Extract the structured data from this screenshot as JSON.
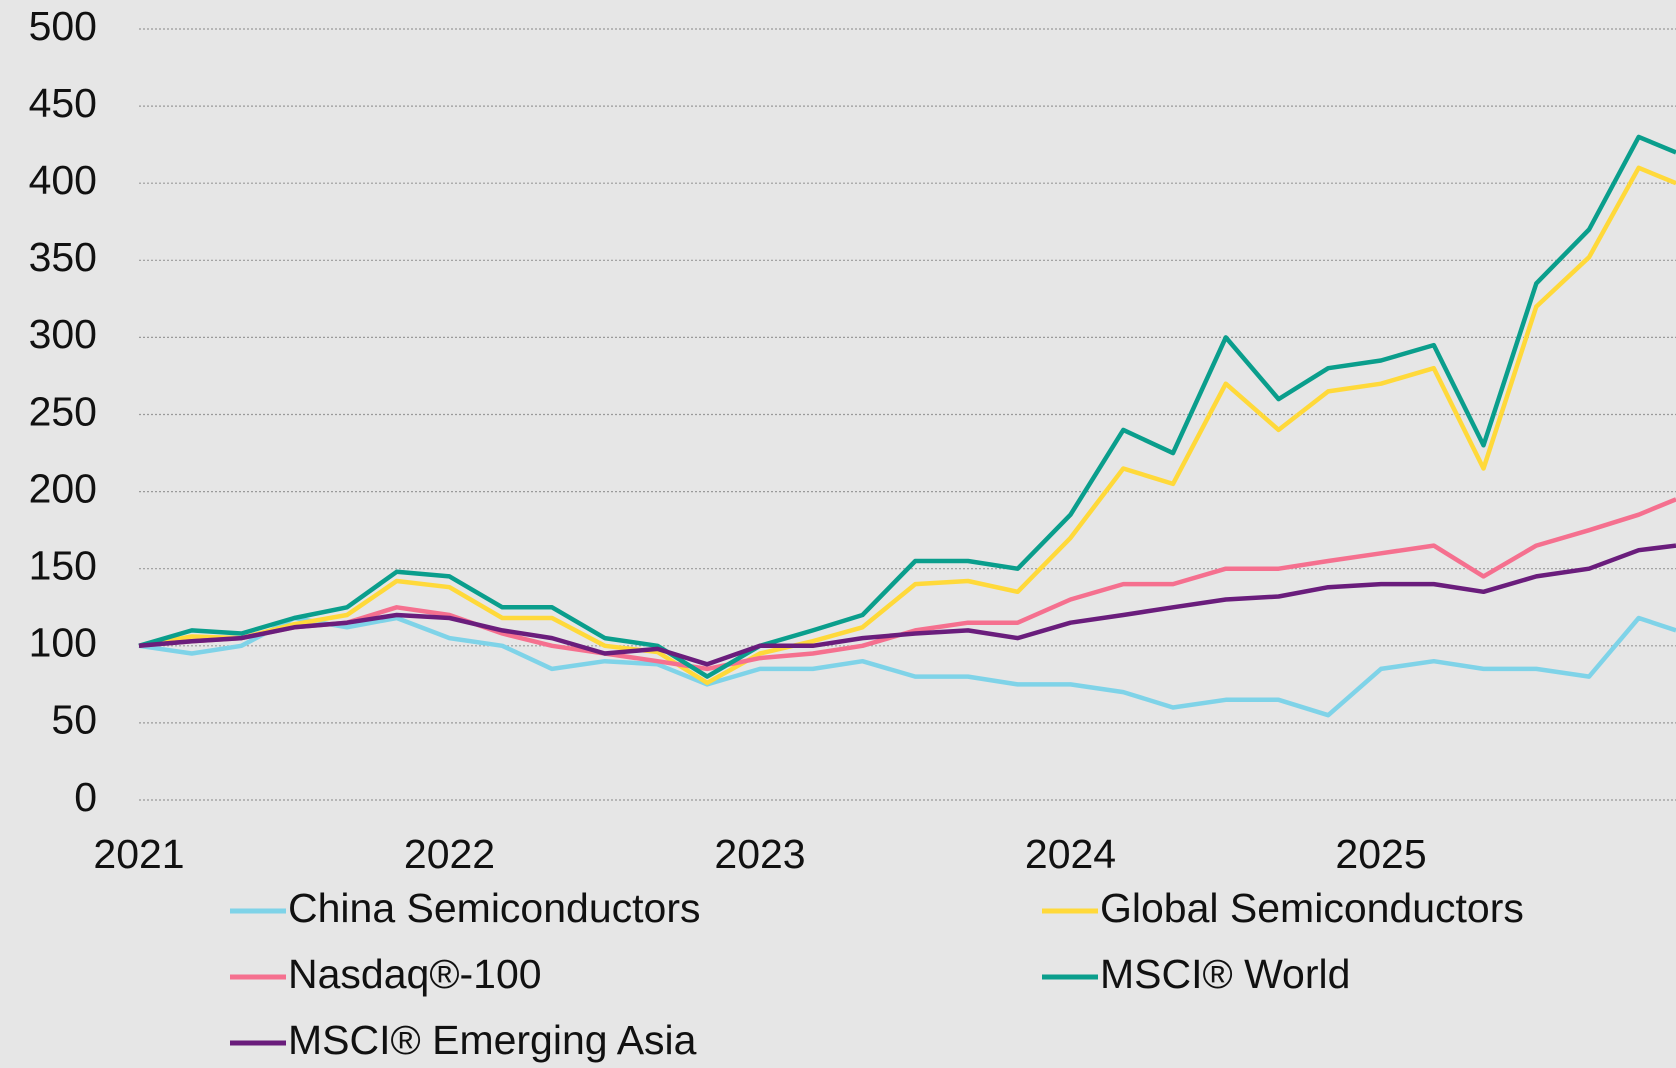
{
  "chart_data": {
    "type": "line",
    "x": [
      2021,
      2021.17,
      2021.33,
      2021.5,
      2021.67,
      2021.83,
      2022,
      2022.17,
      2022.33,
      2022.5,
      2022.67,
      2022.83,
      2023,
      2023.17,
      2023.33,
      2023.5,
      2023.67,
      2023.83,
      2024,
      2024.17,
      2024.33,
      2024.5,
      2024.67,
      2024.83,
      2025,
      2025.17,
      2025.33,
      2025.5,
      2025.67,
      2025.83,
      2025.95
    ],
    "series": [
      {
        "name": "China Semiconductors",
        "color": "#7fd3e8",
        "values": [
          100,
          95,
          100,
          118,
          112,
          118,
          105,
          100,
          85,
          90,
          88,
          75,
          85,
          85,
          90,
          80,
          80,
          75,
          75,
          70,
          60,
          65,
          65,
          55,
          85,
          90,
          85,
          85,
          80,
          118,
          110
        ]
      },
      {
        "name": "Global Semiconductors",
        "color": "#ffd93a",
        "values": [
          100,
          106,
          105,
          114,
          120,
          142,
          138,
          118,
          118,
          100,
          96,
          76,
          95,
          103,
          112,
          140,
          142,
          135,
          170,
          215,
          205,
          270,
          240,
          265,
          270,
          280,
          215,
          320,
          352,
          410,
          400
        ]
      },
      {
        "name": "Nasdaq®-100",
        "color": "#f5708f",
        "values": [
          100,
          103,
          105,
          112,
          115,
          125,
          120,
          108,
          100,
          95,
          90,
          85,
          92,
          95,
          100,
          110,
          115,
          115,
          130,
          140,
          140,
          150,
          150,
          155,
          160,
          165,
          145,
          165,
          175,
          185,
          195
        ]
      },
      {
        "name": "MSCI® World",
        "color": "#0a9e8c",
        "values": [
          100,
          110,
          108,
          118,
          125,
          148,
          145,
          125,
          125,
          105,
          100,
          80,
          100,
          110,
          120,
          155,
          155,
          150,
          185,
          240,
          225,
          300,
          260,
          280,
          285,
          295,
          230,
          335,
          370,
          430,
          420
        ]
      },
      {
        "name": "MSCI® Emerging Asia",
        "color": "#6a1d7c",
        "values": [
          100,
          103,
          105,
          112,
          115,
          120,
          118,
          110,
          105,
          95,
          98,
          88,
          100,
          100,
          105,
          108,
          110,
          105,
          115,
          120,
          125,
          130,
          132,
          138,
          140,
          140,
          135,
          145,
          150,
          162,
          165
        ]
      }
    ],
    "xlim": [
      2021,
      2025.95
    ],
    "xticks": [
      2021,
      2022,
      2023,
      2024,
      2025
    ],
    "ylim": [
      0,
      500
    ],
    "yticks": [
      0,
      50,
      100,
      150,
      200,
      250,
      300,
      350,
      400,
      450,
      500
    ],
    "grid": true,
    "legend": "bottom"
  }
}
